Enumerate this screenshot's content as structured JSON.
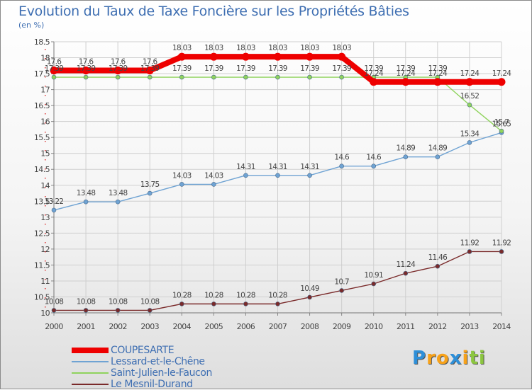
{
  "chart_data": {
    "type": "line",
    "title": "Evolution du Taux de Taxe Foncière sur les Propriétés Bâties",
    "ylabel": "(en %)",
    "xlabel": "",
    "ylim": [
      10,
      18.5
    ],
    "y_ticks": [
      "10",
      "10.5",
      "11",
      "11.5",
      "12",
      "12.5",
      "13",
      "13.5",
      "14",
      "14.5",
      "15",
      "15.5",
      "16",
      "16.5",
      "17",
      "17.5",
      "18",
      "18.5"
    ],
    "x": [
      "2000",
      "2001",
      "2002",
      "2003",
      "2004",
      "2005",
      "2006",
      "2007",
      "2008",
      "2009",
      "2010",
      "2011",
      "2012",
      "2013",
      "2014"
    ],
    "series": [
      {
        "name": "COUPESARTE",
        "color": "#ee0000",
        "values": [
          17.6,
          17.6,
          17.6,
          17.6,
          18.03,
          18.03,
          18.03,
          18.03,
          18.03,
          18.03,
          17.24,
          17.24,
          17.24,
          17.24,
          17.24
        ],
        "labels": [
          "17.6",
          "17.6",
          "17.6",
          "17.6",
          "18.03",
          "18.03",
          "18.03",
          "18.03",
          "18.03",
          "18.03",
          "17.24",
          "17.24",
          "17.24",
          "17.24",
          "17.24"
        ]
      },
      {
        "name": "Lessard-et-le-Chêne",
        "color": "#6fa3d3",
        "values": [
          13.22,
          13.48,
          13.48,
          13.75,
          14.03,
          14.03,
          14.31,
          14.31,
          14.31,
          14.6,
          14.6,
          14.89,
          14.89,
          15.34,
          15.65
        ],
        "labels": [
          "13.22",
          "13.48",
          "13.48",
          "13.75",
          "14.03",
          "14.03",
          "14.31",
          "14.31",
          "14.31",
          "14.6",
          "14.6",
          "14.89",
          "14.89",
          "15.34",
          "15.65"
        ]
      },
      {
        "name": "Saint-Julien-le-Faucon",
        "color": "#8fd35d",
        "values": [
          17.39,
          17.39,
          17.39,
          17.39,
          17.39,
          17.39,
          17.39,
          17.39,
          17.39,
          17.39,
          17.39,
          17.39,
          17.39,
          16.52,
          15.7
        ],
        "labels": [
          "17.39",
          "17.39",
          "17.39",
          "17.39",
          "17.39",
          "17.39",
          "17.39",
          "17.39",
          "17.39",
          "17.39",
          "17.39",
          "17.39",
          "17.39",
          "16.52",
          "15.7"
        ]
      },
      {
        "name": "Le Mesnil-Durand",
        "color": "#7a2a2a",
        "values": [
          10.08,
          10.08,
          10.08,
          10.08,
          10.28,
          10.28,
          10.28,
          10.28,
          10.49,
          10.7,
          10.91,
          11.24,
          11.46,
          11.92,
          11.92
        ],
        "labels": [
          "10.08",
          "10.08",
          "10.08",
          "10.08",
          "10.28",
          "10.28",
          "10.28",
          "10.28",
          "10.49",
          "10.7",
          "10.91",
          "11.24",
          "11.46",
          "11.92",
          "11.92"
        ]
      }
    ],
    "legend_position": "bottom-left"
  },
  "branding": {
    "logo_letters": [
      "P",
      "r",
      "o",
      "x",
      "i",
      "t",
      "i"
    ],
    "logo_colors": [
      "#2e8fd8",
      "#f7a21a",
      "#f7a21a",
      "#2e8fd8",
      "#f7a21a",
      "#8cc63f",
      "#8cc63f"
    ]
  }
}
